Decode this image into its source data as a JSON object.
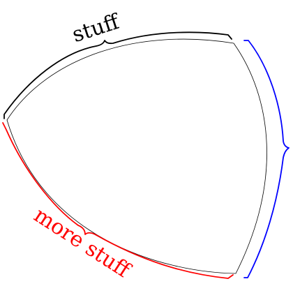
{
  "labels": {
    "top": "stuff",
    "bottom_left": "more stuff"
  },
  "colors": {
    "background": "#ffffff",
    "shape_outline": "#000000",
    "top_brace": "#000000",
    "bottom_left_brace": "#ff0000",
    "right_brace": "#0000ff"
  }
}
